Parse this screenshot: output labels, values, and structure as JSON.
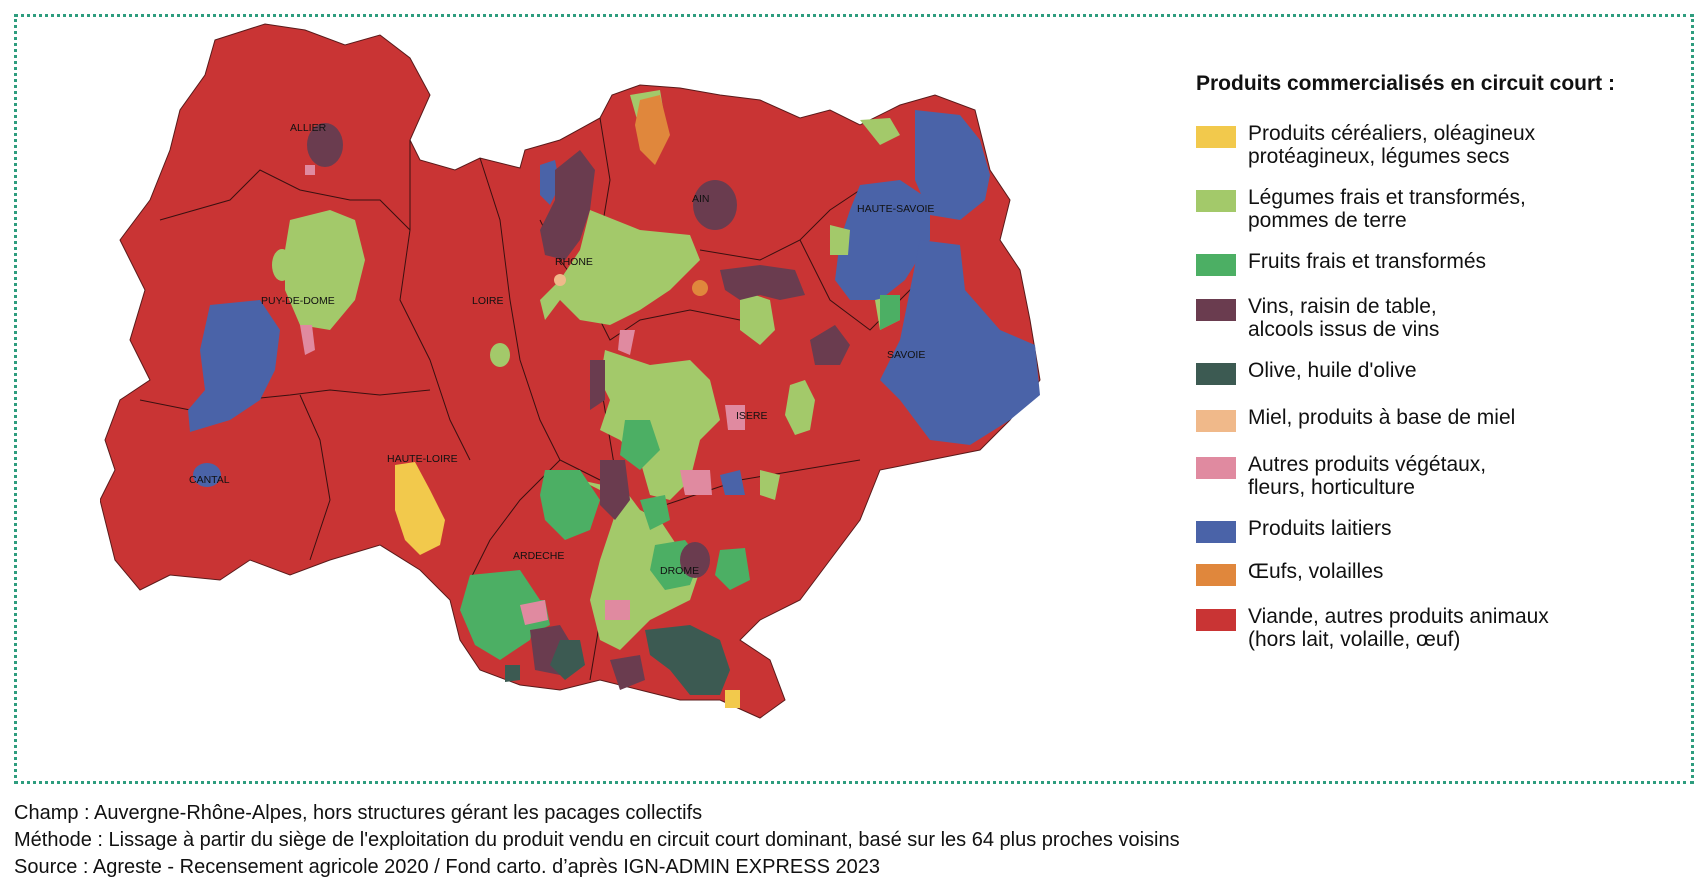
{
  "legend": {
    "title": "Produits commercialisés en circuit court :",
    "items": [
      {
        "line1": "Produits céréaliers, oléagineux",
        "line2": "protéagineux, légumes secs",
        "color": "#f2c94c"
      },
      {
        "line1": "Légumes frais et transformés,",
        "line2": "pommes de terre",
        "color": "#a3c96a"
      },
      {
        "line1": "Fruits frais et transformés",
        "line2": "",
        "color": "#4caf64"
      },
      {
        "line1": "Vins, raisin de table,",
        "line2": "alcools issus de vins",
        "color": "#6a3c4f"
      },
      {
        "line1": "Olive, huile d'olive",
        "line2": "",
        "color": "#3c5a52"
      },
      {
        "line1": "Miel, produits à base de miel",
        "line2": "",
        "color": "#f0b98a"
      },
      {
        "line1": "Autres produits végétaux,",
        "line2": "fleurs, horticulture",
        "color": "#e08aa0"
      },
      {
        "line1": "Produits laitiers",
        "line2": "",
        "color": "#4a63a8"
      },
      {
        "line1": "Œufs, volailles",
        "line2": "",
        "color": "#e0873c"
      },
      {
        "line1": "Viande, autres produits animaux",
        "line2": "(hors lait, volaille, œuf)",
        "color": "#c93434"
      }
    ]
  },
  "departments": {
    "allier": "ALLIER",
    "puy_de_dome": "PUY-DE-DOME",
    "cantal": "CANTAL",
    "haute_loire": "HAUTE-LOIRE",
    "loire": "LOIRE",
    "rhone": "RHONE",
    "ain": "AIN",
    "haute_savoie": "HAUTE-SAVOIE",
    "savoie": "SAVOIE",
    "isere": "ISERE",
    "ardeche": "ARDECHE",
    "drome": "DROME"
  },
  "notes": {
    "champ": "Champ : Auvergne-Rhône-Alpes, hors structures gérant les pacages collectifs",
    "methode": "Méthode : Lissage à partir du siège de l'exploitation du produit vendu en circuit court dominant, basé sur les 64 plus proches voisins",
    "source": "Source : Agreste - Recensement agricole 2020 / Fond carto. d’après IGN-ADMIN EXPRESS 2023"
  }
}
